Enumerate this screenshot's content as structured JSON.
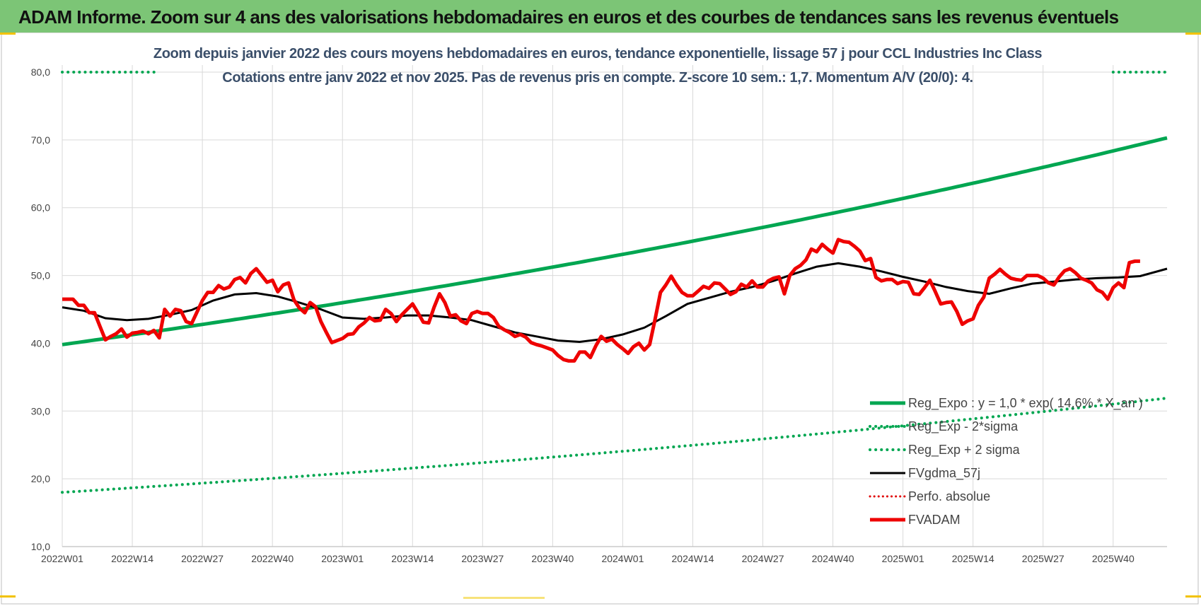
{
  "header": {
    "title": "ADAM Informe. Zoom sur 4 ans des valorisations hebdomadaires en euros et des courbes de tendances sans les revenus éventuels"
  },
  "chart_data": {
    "type": "line",
    "title_line1": "Zoom depuis janvier 2022 des cours moyens hebdomadaires en euros, tendance exponentielle, lissage 57 j pour CCL Industries Inc Class",
    "title_line2": "Cotations entre janv 2022 et nov 2025. Pas de revenus pris en compte. Z-score 10 sem.: 1,7. Momentum A/V (20/0): 4.",
    "xlabel": "",
    "ylabel": "",
    "ylim": [
      10,
      80
    ],
    "grid": true,
    "legend_position": "bottom-right",
    "y_ticks": [
      "10,0",
      "20,0",
      "30,0",
      "40,0",
      "50,0",
      "60,0",
      "70,0",
      "80,0"
    ],
    "x_ticks": [
      "2022W01",
      "2022W14",
      "2022W27",
      "2022W40",
      "2023W01",
      "2023W14",
      "2023W27",
      "2023W40",
      "2024W01",
      "2024W14",
      "2024W27",
      "2024W40",
      "2025W01",
      "2025W14",
      "2025W27",
      "2025W40"
    ],
    "x_tick_weeks": [
      0,
      13,
      26,
      39,
      52,
      65,
      78,
      91,
      104,
      117,
      130,
      143,
      156,
      169,
      182,
      195
    ],
    "x_max_week": 205,
    "colors": {
      "reg_expo": "#00a651",
      "reg_bands": "#00a651",
      "fvgdma": "#000000",
      "perfo": "#e00000",
      "fvadam": "#ee0000",
      "grid": "#d9d9d9",
      "title": "#3b4f6a",
      "header_bg": "#7cc576"
    },
    "series": [
      {
        "name": "Reg_Expo : y = 1,0 * exp( 14,6% * X_an )",
        "style": "solid-thick-green",
        "points": [
          [
            0,
            39.8
          ],
          [
            205,
            70.3
          ]
        ]
      },
      {
        "name": "Reg_Exp - 2*sigma",
        "style": "dotted-green",
        "points": [
          [
            0,
            18.0
          ],
          [
            205,
            31.9
          ]
        ]
      },
      {
        "name": "Reg_Exp + 2 sigma",
        "style": "dotted-green",
        "points": [
          [
            0,
            80.0
          ],
          [
            18,
            80.0
          ],
          [
            195,
            80.0
          ],
          [
            205,
            80.0
          ]
        ],
        "visible_ranges": [
          [
            0,
            18
          ],
          [
            195,
            205
          ]
        ]
      },
      {
        "name": "FVgdma_57j",
        "style": "solid-black",
        "points": [
          [
            0,
            45.3
          ],
          [
            4,
            44.8
          ],
          [
            8,
            43.7
          ],
          [
            12,
            43.4
          ],
          [
            16,
            43.6
          ],
          [
            20,
            44.2
          ],
          [
            24,
            44.9
          ],
          [
            28,
            46.3
          ],
          [
            32,
            47.2
          ],
          [
            36,
            47.4
          ],
          [
            40,
            46.9
          ],
          [
            44,
            46.0
          ],
          [
            48,
            45.0
          ],
          [
            52,
            43.8
          ],
          [
            56,
            43.6
          ],
          [
            60,
            43.8
          ],
          [
            64,
            44.1
          ],
          [
            68,
            44.1
          ],
          [
            72,
            43.8
          ],
          [
            76,
            43.4
          ],
          [
            80,
            42.5
          ],
          [
            84,
            41.6
          ],
          [
            88,
            41.0
          ],
          [
            92,
            40.4
          ],
          [
            96,
            40.2
          ],
          [
            100,
            40.6
          ],
          [
            104,
            41.3
          ],
          [
            108,
            42.3
          ],
          [
            112,
            44.0
          ],
          [
            116,
            45.8
          ],
          [
            120,
            46.7
          ],
          [
            124,
            47.6
          ],
          [
            128,
            48.3
          ],
          [
            132,
            49.2
          ],
          [
            136,
            50.3
          ],
          [
            140,
            51.3
          ],
          [
            144,
            51.8
          ],
          [
            148,
            51.3
          ],
          [
            152,
            50.6
          ],
          [
            156,
            49.8
          ],
          [
            160,
            49.1
          ],
          [
            164,
            48.3
          ],
          [
            168,
            47.7
          ],
          [
            172,
            47.3
          ],
          [
            176,
            48.1
          ],
          [
            180,
            48.8
          ],
          [
            184,
            49.1
          ],
          [
            188,
            49.4
          ],
          [
            192,
            49.6
          ],
          [
            196,
            49.7
          ],
          [
            200,
            49.9
          ],
          [
            205,
            51.0
          ]
        ]
      },
      {
        "name": "Perfo. absolue",
        "style": "dotted-red",
        "points": []
      },
      {
        "name": "FVADAM",
        "style": "solid-thick-red",
        "points": [
          [
            0,
            46.5
          ],
          [
            1,
            46.5
          ],
          [
            2,
            46.5
          ],
          [
            3,
            45.6
          ],
          [
            4,
            45.6
          ],
          [
            5,
            44.5
          ],
          [
            6,
            44.5
          ],
          [
            7,
            42.5
          ],
          [
            8,
            40.5
          ],
          [
            9,
            41.0
          ],
          [
            10,
            41.4
          ],
          [
            11,
            42.1
          ],
          [
            12,
            40.9
          ],
          [
            13,
            41.5
          ],
          [
            14,
            41.6
          ],
          [
            15,
            41.8
          ],
          [
            16,
            41.4
          ],
          [
            17,
            41.9
          ],
          [
            18,
            40.8
          ],
          [
            19,
            45.0
          ],
          [
            20,
            44.0
          ],
          [
            21,
            45.0
          ],
          [
            22,
            44.8
          ],
          [
            23,
            43.2
          ],
          [
            24,
            42.9
          ],
          [
            25,
            44.6
          ],
          [
            26,
            46.3
          ],
          [
            27,
            47.5
          ],
          [
            28,
            47.5
          ],
          [
            29,
            48.5
          ],
          [
            30,
            48.0
          ],
          [
            31,
            48.3
          ],
          [
            32,
            49.4
          ],
          [
            33,
            49.7
          ],
          [
            34,
            48.9
          ],
          [
            35,
            50.3
          ],
          [
            36,
            51.0
          ],
          [
            37,
            50.0
          ],
          [
            38,
            49.0
          ],
          [
            39,
            49.3
          ],
          [
            40,
            47.6
          ],
          [
            41,
            48.6
          ],
          [
            42,
            48.9
          ],
          [
            43,
            46.4
          ],
          [
            44,
            45.2
          ],
          [
            45,
            44.5
          ],
          [
            46,
            46.0
          ],
          [
            47,
            45.4
          ],
          [
            48,
            43.2
          ],
          [
            49,
            41.6
          ],
          [
            50,
            40.1
          ],
          [
            51,
            40.4
          ],
          [
            52,
            40.7
          ],
          [
            53,
            41.3
          ],
          [
            54,
            41.4
          ],
          [
            55,
            42.4
          ],
          [
            56,
            43.0
          ],
          [
            57,
            43.8
          ],
          [
            58,
            43.3
          ],
          [
            59,
            43.4
          ],
          [
            60,
            45.0
          ],
          [
            61,
            44.4
          ],
          [
            62,
            43.2
          ],
          [
            63,
            44.2
          ],
          [
            64,
            45.0
          ],
          [
            65,
            45.8
          ],
          [
            66,
            44.5
          ],
          [
            67,
            43.1
          ],
          [
            68,
            43.0
          ],
          [
            69,
            45.3
          ],
          [
            70,
            47.3
          ],
          [
            71,
            46.0
          ],
          [
            72,
            44.0
          ],
          [
            73,
            44.2
          ],
          [
            74,
            43.3
          ],
          [
            75,
            42.9
          ],
          [
            76,
            44.4
          ],
          [
            77,
            44.7
          ],
          [
            78,
            44.4
          ],
          [
            79,
            44.4
          ],
          [
            80,
            43.8
          ],
          [
            81,
            42.5
          ],
          [
            82,
            42.0
          ],
          [
            83,
            41.6
          ],
          [
            84,
            41.0
          ],
          [
            85,
            41.3
          ],
          [
            86,
            40.9
          ],
          [
            87,
            40.1
          ],
          [
            88,
            39.8
          ],
          [
            89,
            39.6
          ],
          [
            90,
            39.3
          ],
          [
            91,
            39.0
          ],
          [
            92,
            38.2
          ],
          [
            93,
            37.6
          ],
          [
            94,
            37.4
          ],
          [
            95,
            37.4
          ],
          [
            96,
            38.7
          ],
          [
            97,
            38.7
          ],
          [
            98,
            37.9
          ],
          [
            99,
            39.6
          ],
          [
            100,
            41.0
          ],
          [
            101,
            40.3
          ],
          [
            102,
            40.6
          ],
          [
            103,
            39.8
          ],
          [
            104,
            39.2
          ],
          [
            105,
            38.5
          ],
          [
            106,
            39.5
          ],
          [
            107,
            40.0
          ],
          [
            108,
            39.0
          ],
          [
            109,
            39.8
          ],
          [
            110,
            43.5
          ],
          [
            111,
            47.5
          ],
          [
            112,
            48.6
          ],
          [
            113,
            49.9
          ],
          [
            114,
            48.6
          ],
          [
            115,
            47.5
          ],
          [
            116,
            47.0
          ],
          [
            117,
            47.0
          ],
          [
            118,
            47.7
          ],
          [
            119,
            48.4
          ],
          [
            120,
            48.1
          ],
          [
            121,
            48.9
          ],
          [
            122,
            48.8
          ],
          [
            123,
            48.0
          ],
          [
            124,
            47.2
          ],
          [
            125,
            47.6
          ],
          [
            126,
            48.7
          ],
          [
            127,
            48.3
          ],
          [
            128,
            49.2
          ],
          [
            129,
            48.3
          ],
          [
            130,
            48.3
          ],
          [
            131,
            49.2
          ],
          [
            132,
            49.6
          ],
          [
            133,
            49.8
          ],
          [
            134,
            47.3
          ],
          [
            135,
            50.0
          ],
          [
            136,
            51.0
          ],
          [
            137,
            51.5
          ],
          [
            138,
            52.3
          ],
          [
            139,
            53.9
          ],
          [
            140,
            53.5
          ],
          [
            141,
            54.6
          ],
          [
            142,
            53.9
          ],
          [
            143,
            53.3
          ],
          [
            144,
            55.3
          ],
          [
            145,
            55.0
          ],
          [
            146,
            54.9
          ],
          [
            147,
            54.3
          ],
          [
            148,
            53.6
          ],
          [
            149,
            52.2
          ],
          [
            150,
            52.5
          ],
          [
            151,
            49.7
          ],
          [
            152,
            49.2
          ],
          [
            153,
            49.4
          ],
          [
            154,
            49.4
          ],
          [
            155,
            48.8
          ],
          [
            156,
            49.1
          ],
          [
            157,
            49.0
          ],
          [
            158,
            47.3
          ],
          [
            159,
            47.2
          ],
          [
            160,
            48.2
          ],
          [
            161,
            49.3
          ],
          [
            162,
            47.6
          ],
          [
            163,
            45.8
          ],
          [
            164,
            46.0
          ],
          [
            165,
            46.1
          ],
          [
            166,
            44.7
          ],
          [
            167,
            42.8
          ],
          [
            168,
            43.3
          ],
          [
            169,
            43.6
          ],
          [
            170,
            45.6
          ],
          [
            171,
            46.8
          ],
          [
            172,
            49.6
          ],
          [
            173,
            50.2
          ],
          [
            174,
            50.9
          ],
          [
            175,
            50.2
          ],
          [
            176,
            49.6
          ],
          [
            177,
            49.4
          ],
          [
            178,
            49.3
          ],
          [
            179,
            50.0
          ],
          [
            180,
            50.0
          ],
          [
            181,
            50.0
          ],
          [
            182,
            49.6
          ],
          [
            183,
            48.9
          ],
          [
            184,
            48.6
          ],
          [
            185,
            49.8
          ],
          [
            186,
            50.7
          ],
          [
            187,
            51.0
          ],
          [
            188,
            50.4
          ],
          [
            189,
            49.6
          ],
          [
            190,
            49.3
          ],
          [
            191,
            48.9
          ],
          [
            192,
            47.9
          ],
          [
            193,
            47.5
          ],
          [
            194,
            46.5
          ],
          [
            195,
            48.2
          ],
          [
            196,
            48.9
          ],
          [
            197,
            48.2
          ],
          [
            198,
            51.9
          ],
          [
            199,
            52.1
          ],
          [
            200,
            52.1
          ]
        ]
      }
    ]
  }
}
